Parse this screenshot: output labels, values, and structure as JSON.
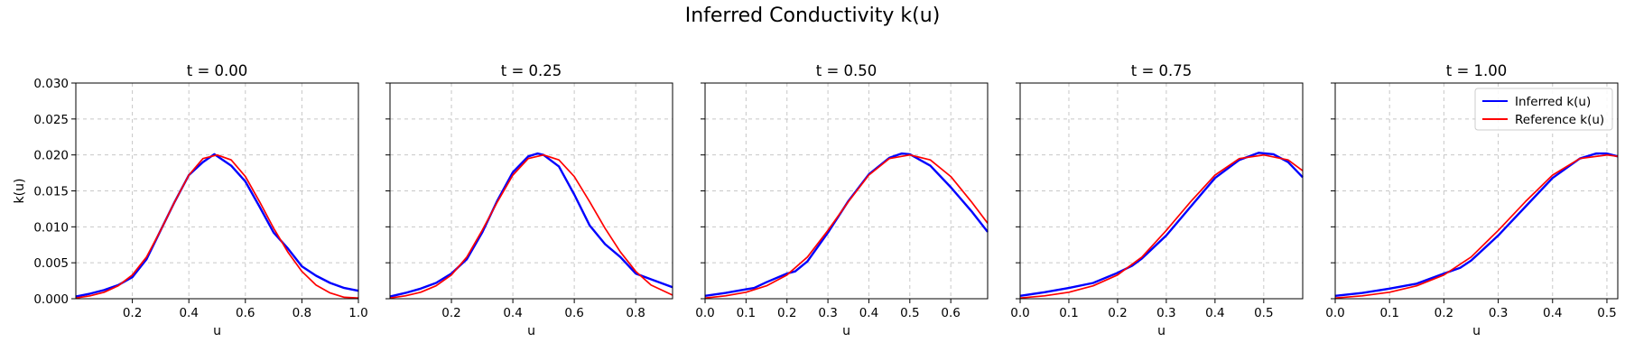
{
  "figure": {
    "title": "Inferred Conductivity k(u)"
  },
  "legend": {
    "placement": "upper-right of last panel",
    "entries": [
      {
        "label": "Inferred k(u)",
        "color": "#0000ff"
      },
      {
        "label": "Reference k(u)",
        "color": "#ff0000"
      }
    ]
  },
  "chart_data": [
    {
      "type": "line",
      "title": "t = 0.00",
      "xlabel": "u",
      "ylabel": "k(u)",
      "xlim": [
        0.0,
        1.0
      ],
      "ylim": [
        0.0,
        0.03
      ],
      "xticks": [
        0.2,
        0.4,
        0.6,
        0.8,
        1.0
      ],
      "xtick_labels": [
        "0.2",
        "0.4",
        "0.6",
        "0.8",
        "1.0"
      ],
      "yticks": [
        0.0,
        0.005,
        0.01,
        0.015,
        0.02,
        0.025,
        0.03
      ],
      "ytick_labels": [
        "0.000",
        "0.005",
        "0.010",
        "0.015",
        "0.020",
        "0.025",
        "0.030"
      ],
      "grid": true,
      "series": [
        {
          "name": "Inferred k(u)",
          "color": "#0000ff",
          "x": [
            0.0,
            0.05,
            0.1,
            0.15,
            0.2,
            0.25,
            0.3,
            0.35,
            0.4,
            0.45,
            0.49,
            0.55,
            0.6,
            0.65,
            0.7,
            0.75,
            0.8,
            0.85,
            0.9,
            0.95,
            1.0
          ],
          "y": [
            0.0003,
            0.0007,
            0.0012,
            0.0019,
            0.003,
            0.0055,
            0.0095,
            0.0135,
            0.0172,
            0.019,
            0.0201,
            0.0185,
            0.0163,
            0.0128,
            0.0092,
            0.007,
            0.0045,
            0.0032,
            0.0022,
            0.0015,
            0.0011
          ]
        },
        {
          "name": "Reference k(u)",
          "color": "#ff0000",
          "x": [
            0.0,
            0.05,
            0.1,
            0.15,
            0.2,
            0.25,
            0.3,
            0.35,
            0.4,
            0.45,
            0.5,
            0.55,
            0.6,
            0.65,
            0.7,
            0.75,
            0.8,
            0.85,
            0.9,
            0.95,
            1.0
          ],
          "y": [
            0.0001,
            0.0004,
            0.0009,
            0.0018,
            0.0033,
            0.0058,
            0.0095,
            0.0135,
            0.0172,
            0.0195,
            0.02,
            0.0193,
            0.017,
            0.0135,
            0.0098,
            0.0065,
            0.0038,
            0.0019,
            0.0008,
            0.0002,
            0.0001
          ]
        }
      ]
    },
    {
      "type": "line",
      "title": "t = 0.25",
      "xlabel": "u",
      "ylabel": "",
      "xlim": [
        0.0,
        0.92
      ],
      "ylim": [
        0.0,
        0.03
      ],
      "xticks": [
        0.2,
        0.4,
        0.6,
        0.8
      ],
      "xtick_labels": [
        "0.2",
        "0.4",
        "0.6",
        "0.8"
      ],
      "yticks": [
        0.0,
        0.005,
        0.01,
        0.015,
        0.02,
        0.025,
        0.03
      ],
      "grid": true,
      "series": [
        {
          "name": "Inferred k(u)",
          "color": "#0000ff",
          "x": [
            0.0,
            0.05,
            0.1,
            0.15,
            0.2,
            0.25,
            0.3,
            0.35,
            0.4,
            0.45,
            0.48,
            0.5,
            0.55,
            0.6,
            0.65,
            0.7,
            0.75,
            0.8,
            0.85,
            0.92
          ],
          "y": [
            0.0003,
            0.0008,
            0.0014,
            0.0022,
            0.0035,
            0.0055,
            0.0092,
            0.0137,
            0.0176,
            0.0198,
            0.0202,
            0.02,
            0.0184,
            0.0145,
            0.0102,
            0.0076,
            0.0058,
            0.0035,
            0.0027,
            0.0016
          ]
        },
        {
          "name": "Reference k(u)",
          "color": "#ff0000",
          "x": [
            0.0,
            0.05,
            0.1,
            0.15,
            0.2,
            0.25,
            0.3,
            0.35,
            0.4,
            0.45,
            0.5,
            0.55,
            0.6,
            0.65,
            0.7,
            0.75,
            0.8,
            0.85,
            0.92
          ],
          "y": [
            0.0001,
            0.0004,
            0.0009,
            0.0018,
            0.0033,
            0.0058,
            0.0095,
            0.0135,
            0.0172,
            0.0195,
            0.02,
            0.0193,
            0.017,
            0.0135,
            0.0098,
            0.0065,
            0.0038,
            0.0019,
            0.0005
          ]
        }
      ]
    },
    {
      "type": "line",
      "title": "t = 0.50",
      "xlabel": "u",
      "ylabel": "",
      "xlim": [
        0.0,
        0.69
      ],
      "ylim": [
        0.0,
        0.03
      ],
      "xticks": [
        0.0,
        0.1,
        0.2,
        0.3,
        0.4,
        0.5,
        0.6
      ],
      "xtick_labels": [
        "0.0",
        "0.1",
        "0.2",
        "0.3",
        "0.4",
        "0.5",
        "0.6"
      ],
      "yticks": [
        0.0,
        0.005,
        0.01,
        0.015,
        0.02,
        0.025,
        0.03
      ],
      "grid": true,
      "series": [
        {
          "name": "Inferred k(u)",
          "color": "#0000ff",
          "x": [
            0.0,
            0.05,
            0.1,
            0.12,
            0.15,
            0.2,
            0.22,
            0.25,
            0.3,
            0.35,
            0.4,
            0.45,
            0.48,
            0.5,
            0.55,
            0.6,
            0.65,
            0.69
          ],
          "y": [
            0.0004,
            0.0008,
            0.0013,
            0.0015,
            0.0023,
            0.0035,
            0.0038,
            0.0052,
            0.0092,
            0.0136,
            0.0173,
            0.0196,
            0.0202,
            0.0201,
            0.0185,
            0.0155,
            0.0122,
            0.0093
          ]
        },
        {
          "name": "Reference k(u)",
          "color": "#ff0000",
          "x": [
            0.0,
            0.05,
            0.1,
            0.15,
            0.2,
            0.25,
            0.3,
            0.35,
            0.4,
            0.45,
            0.5,
            0.55,
            0.6,
            0.65,
            0.69
          ],
          "y": [
            0.0001,
            0.0004,
            0.0009,
            0.0018,
            0.0033,
            0.0058,
            0.0095,
            0.0135,
            0.0172,
            0.0195,
            0.02,
            0.0193,
            0.017,
            0.0135,
            0.0105
          ]
        }
      ]
    },
    {
      "type": "line",
      "title": "t = 0.75",
      "xlabel": "u",
      "ylabel": "",
      "xlim": [
        0.0,
        0.58
      ],
      "ylim": [
        0.0,
        0.03
      ],
      "xticks": [
        0.0,
        0.1,
        0.2,
        0.3,
        0.4,
        0.5
      ],
      "xtick_labels": [
        "0.0",
        "0.1",
        "0.2",
        "0.3",
        "0.4",
        "0.5"
      ],
      "yticks": [
        0.0,
        0.005,
        0.01,
        0.015,
        0.02,
        0.025,
        0.03
      ],
      "grid": true,
      "series": [
        {
          "name": "Inferred k(u)",
          "color": "#0000ff",
          "x": [
            0.0,
            0.05,
            0.1,
            0.15,
            0.2,
            0.23,
            0.25,
            0.3,
            0.35,
            0.4,
            0.45,
            0.49,
            0.52,
            0.55,
            0.58
          ],
          "y": [
            0.0004,
            0.0009,
            0.0015,
            0.0022,
            0.0036,
            0.0046,
            0.0056,
            0.0088,
            0.0128,
            0.0168,
            0.0193,
            0.0203,
            0.0201,
            0.019,
            0.0169
          ]
        },
        {
          "name": "Reference k(u)",
          "color": "#ff0000",
          "x": [
            0.0,
            0.05,
            0.1,
            0.15,
            0.2,
            0.25,
            0.3,
            0.35,
            0.4,
            0.45,
            0.5,
            0.55,
            0.58
          ],
          "y": [
            0.0001,
            0.0004,
            0.0009,
            0.0018,
            0.0033,
            0.0058,
            0.0095,
            0.0135,
            0.0172,
            0.0195,
            0.02,
            0.0193,
            0.0178
          ]
        }
      ]
    },
    {
      "type": "line",
      "title": "t = 1.00",
      "xlabel": "u",
      "ylabel": "",
      "xlim": [
        0.0,
        0.52
      ],
      "ylim": [
        0.0,
        0.03
      ],
      "xticks": [
        0.0,
        0.1,
        0.2,
        0.3,
        0.4,
        0.5
      ],
      "xtick_labels": [
        "0.0",
        "0.1",
        "0.2",
        "0.3",
        "0.4",
        "0.5"
      ],
      "yticks": [
        0.0,
        0.005,
        0.01,
        0.015,
        0.02,
        0.025,
        0.03
      ],
      "grid": true,
      "series": [
        {
          "name": "Inferred k(u)",
          "color": "#0000ff",
          "x": [
            0.0,
            0.05,
            0.1,
            0.15,
            0.2,
            0.23,
            0.25,
            0.3,
            0.35,
            0.4,
            0.45,
            0.48,
            0.5,
            0.52
          ],
          "y": [
            0.0004,
            0.0008,
            0.0014,
            0.0021,
            0.0035,
            0.0043,
            0.0053,
            0.0088,
            0.0128,
            0.0168,
            0.0195,
            0.0202,
            0.0202,
            0.0198
          ]
        },
        {
          "name": "Reference k(u)",
          "color": "#ff0000",
          "x": [
            0.0,
            0.05,
            0.1,
            0.15,
            0.2,
            0.25,
            0.3,
            0.35,
            0.4,
            0.45,
            0.5,
            0.52
          ],
          "y": [
            0.0001,
            0.0004,
            0.0009,
            0.0018,
            0.0033,
            0.0058,
            0.0095,
            0.0135,
            0.0172,
            0.0195,
            0.02,
            0.0198
          ]
        }
      ]
    }
  ]
}
